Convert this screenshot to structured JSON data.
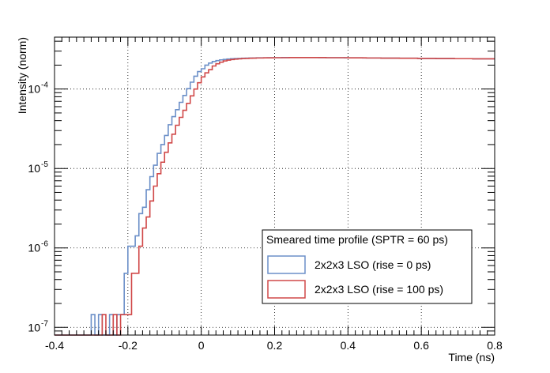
{
  "chart_data": {
    "type": "line",
    "title": "",
    "xlabel": "Time (ns)",
    "ylabel": "Intensity (norm)",
    "xlim": [
      -0.4,
      0.8
    ],
    "ylim": [
      8e-08,
      0.00045
    ],
    "yscale": "log",
    "grid": true,
    "legend_position": "bottom-right",
    "legend_title": "Smeared time profile (SPTR = 60 ps)",
    "x_ticks": [
      {
        "value": -0.4,
        "label": "-0.4"
      },
      {
        "value": -0.2,
        "label": "-0.2"
      },
      {
        "value": 0,
        "label": "0"
      },
      {
        "value": 0.2,
        "label": "0.2"
      },
      {
        "value": 0.4,
        "label": "0.4"
      },
      {
        "value": 0.6,
        "label": "0.6"
      },
      {
        "value": 0.8,
        "label": "0.8"
      }
    ],
    "y_ticks": [
      {
        "value": 1e-07,
        "base": "10",
        "exp": "-7"
      },
      {
        "value": 1e-06,
        "base": "10",
        "exp": "-6"
      },
      {
        "value": 1e-05,
        "base": "10",
        "exp": "-5"
      },
      {
        "value": 0.0001,
        "base": "10",
        "exp": "-4"
      }
    ],
    "series": [
      {
        "name": "2x2x3 LSO (rise = 0 ps)",
        "color": "#6b8fc8",
        "bin_width": 0.01,
        "bin_edges_start": -0.4,
        "values": [
          0,
          0,
          0,
          0,
          0,
          0,
          0,
          0,
          0,
          0,
          1.45e-07,
          0,
          1.45e-07,
          0,
          0,
          1.45e-07,
          0,
          1.45e-07,
          1.45e-07,
          4.8e-07,
          1.05e-06,
          1.05e-06,
          1.42e-06,
          2.7e-06,
          3.25e-06,
          5.4e-06,
          7.9e-06,
          1.1e-05,
          1.55e-05,
          2e-05,
          2.6e-05,
          3.55e-05,
          4.5e-05,
          5.5e-05,
          6.8e-05,
          8.3e-05,
          0.000101,
          0.000122,
          0.000145,
          0.000166,
          0.00018,
          0.0002,
          0.000212,
          0.000222,
          0.000228,
          0.000233,
          0.000236,
          0.000239,
          0.000241,
          0.000242,
          0.000243,
          0.000244,
          0.000245,
          0.000246,
          0.000246,
          0.000247,
          0.000247,
          0.000247,
          0.000248,
          0.000248,
          0.000248,
          0.000248,
          0.000249,
          0.000249,
          0.000249,
          0.000249,
          0.000249,
          0.000249,
          0.000249,
          0.000249,
          0.000249,
          0.000249,
          0.000248,
          0.000248,
          0.000248,
          0.000248,
          0.000248,
          0.000248,
          0.000248,
          0.000247,
          0.000247,
          0.000247,
          0.000247,
          0.000247,
          0.000246,
          0.000246,
          0.000246,
          0.000246,
          0.000246,
          0.000245,
          0.000245,
          0.000245,
          0.000245,
          0.000245,
          0.000244,
          0.000244,
          0.000244,
          0.000244,
          0.000244,
          0.000243,
          0.000243,
          0.000243,
          0.000243,
          0.000243,
          0.000242,
          0.000242,
          0.000242,
          0.000242,
          0.000242,
          0.000241,
          0.000241,
          0.000241,
          0.000241,
          0.000241,
          0.00024,
          0.00024,
          0.00024,
          0.00024,
          0.00024,
          0.00024
        ]
      },
      {
        "name": "2x2x3 LSO (rise = 100 ps)",
        "color": "#d04848",
        "bin_width": 0.01,
        "bin_edges_start": -0.4,
        "values": [
          0,
          0,
          0,
          0,
          0,
          0,
          0,
          0,
          0,
          0,
          0,
          0,
          0,
          1.45e-07,
          0,
          0,
          1.45e-07,
          0,
          1.45e-07,
          1.45e-07,
          1.45e-07,
          4.8e-07,
          4.8e-07,
          1.05e-06,
          1.78e-06,
          2.45e-06,
          3.9e-06,
          6e-06,
          8.6e-06,
          1.2e-05,
          1.6e-05,
          2.1e-05,
          2.7e-05,
          3.5e-05,
          4.4e-05,
          5.4e-05,
          6.6e-05,
          8.2e-05,
          0.0001,
          0.00012,
          0.000142,
          0.00016,
          0.000175,
          0.000195,
          0.000208,
          0.000218,
          0.000226,
          0.000231,
          0.000235,
          0.000238,
          0.00024,
          0.000242,
          0.000243,
          0.000244,
          0.000245,
          0.000246,
          0.000246,
          0.000247,
          0.000247,
          0.000247,
          0.000248,
          0.000248,
          0.000248,
          0.000248,
          0.000249,
          0.000249,
          0.000249,
          0.000249,
          0.000249,
          0.000249,
          0.000249,
          0.000249,
          0.000249,
          0.000249,
          0.000248,
          0.000248,
          0.000248,
          0.000248,
          0.000248,
          0.000248,
          0.000247,
          0.000247,
          0.000247,
          0.000247,
          0.000247,
          0.000246,
          0.000246,
          0.000246,
          0.000246,
          0.000245,
          0.000245,
          0.000245,
          0.000245,
          0.000245,
          0.000244,
          0.000244,
          0.000244,
          0.000244,
          0.000244,
          0.000243,
          0.000243,
          0.000243,
          0.000243,
          0.000243,
          0.000242,
          0.000242,
          0.000242,
          0.000242,
          0.000242,
          0.000241,
          0.000241,
          0.000241,
          0.000241,
          0.000241,
          0.00024,
          0.00024,
          0.00024,
          0.00024,
          0.00024,
          0.00024
        ]
      }
    ]
  }
}
